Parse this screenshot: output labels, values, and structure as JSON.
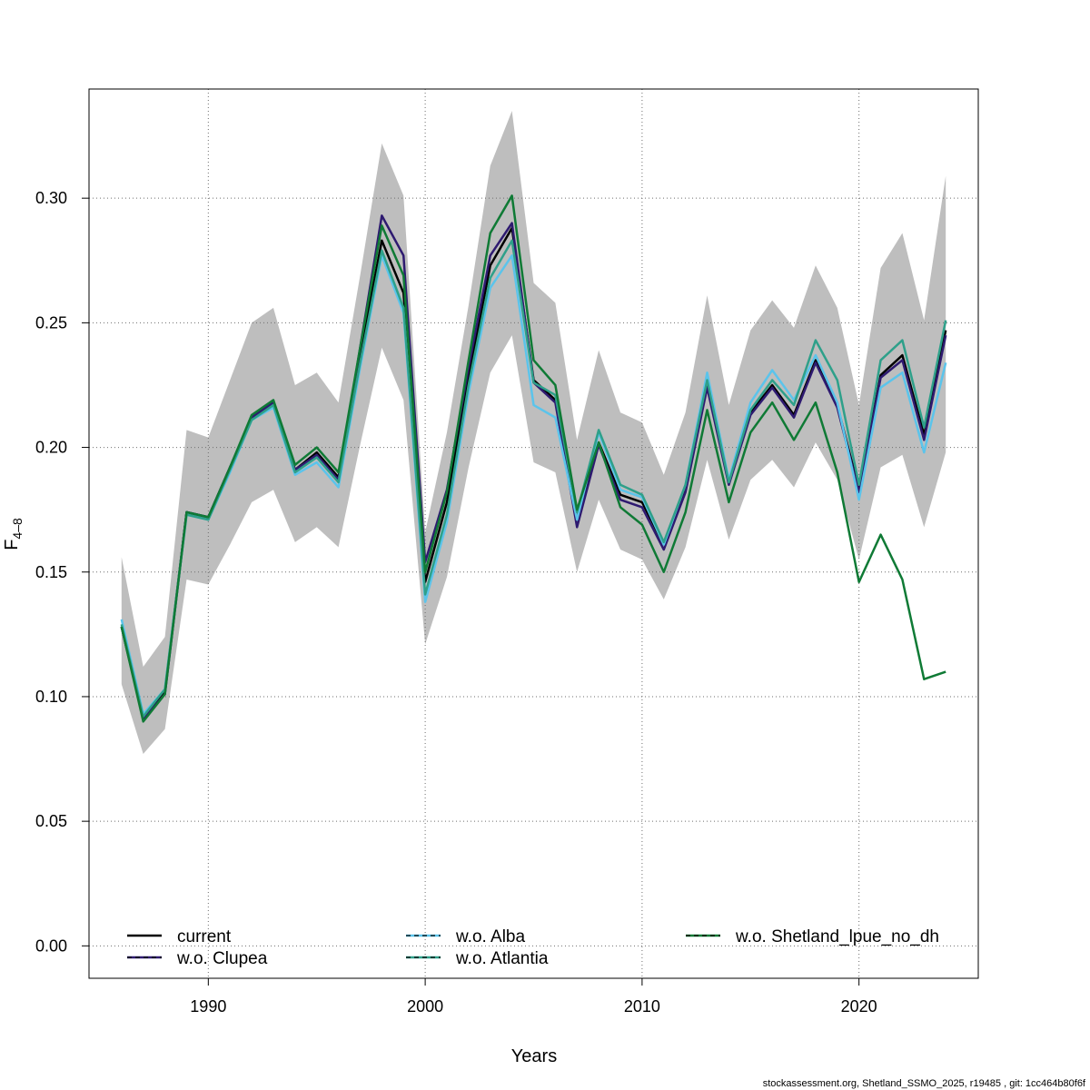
{
  "chart_data": {
    "type": "line",
    "xlabel": "Years",
    "ylabel_main": "F",
    "ylabel_sub": "4–8",
    "xlim": [
      1984.5,
      2025.5
    ],
    "ylim": [
      -0.013,
      0.3438
    ],
    "x_ticks": [
      1990,
      2000,
      2010,
      2020
    ],
    "x_tick_labels": [
      "1990",
      "2000",
      "2010",
      "2020"
    ],
    "y_ticks": [
      0.0,
      0.05,
      0.1,
      0.15,
      0.2,
      0.25,
      0.3
    ],
    "y_tick_labels": [
      "0.00",
      "0.05",
      "0.10",
      "0.15",
      "0.20",
      "0.25",
      "0.30"
    ],
    "grid": true,
    "legend_position": "bottom",
    "x": [
      1986,
      1987,
      1988,
      1989,
      1990,
      1991,
      1992,
      1993,
      1994,
      1995,
      1996,
      1997,
      1998,
      1999,
      2000,
      2001,
      2002,
      2003,
      2004,
      2005,
      2006,
      2007,
      2008,
      2009,
      2010,
      2011,
      2012,
      2013,
      2014,
      2015,
      2016,
      2017,
      2018,
      2019,
      2020,
      2021,
      2022,
      2023,
      2024
    ],
    "confidence_band": {
      "upper": [
        0.156,
        0.112,
        0.124,
        0.207,
        0.204,
        0.227,
        0.25,
        0.256,
        0.225,
        0.23,
        0.218,
        0.269,
        0.322,
        0.301,
        0.166,
        0.206,
        0.257,
        0.313,
        0.335,
        0.266,
        0.258,
        0.203,
        0.239,
        0.214,
        0.21,
        0.189,
        0.214,
        0.261,
        0.217,
        0.247,
        0.259,
        0.248,
        0.273,
        0.256,
        0.217,
        0.272,
        0.286,
        0.251,
        0.309
      ],
      "lower": [
        0.105,
        0.077,
        0.087,
        0.147,
        0.145,
        0.161,
        0.178,
        0.183,
        0.162,
        0.168,
        0.16,
        0.201,
        0.24,
        0.219,
        0.121,
        0.148,
        0.192,
        0.23,
        0.245,
        0.194,
        0.19,
        0.15,
        0.179,
        0.159,
        0.155,
        0.139,
        0.16,
        0.195,
        0.163,
        0.187,
        0.195,
        0.184,
        0.202,
        0.187,
        0.155,
        0.192,
        0.197,
        0.168,
        0.198
      ]
    },
    "series": [
      {
        "name": "current",
        "color": "#000000",
        "dash": "",
        "values": [
          0.128,
          0.091,
          0.102,
          0.174,
          0.172,
          0.192,
          0.212,
          0.218,
          0.191,
          0.198,
          0.188,
          0.237,
          0.283,
          0.262,
          0.146,
          0.178,
          0.228,
          0.273,
          0.288,
          0.227,
          0.219,
          0.171,
          0.202,
          0.181,
          0.178,
          0.161,
          0.183,
          0.226,
          0.186,
          0.214,
          0.225,
          0.213,
          0.235,
          0.217,
          0.183,
          0.229,
          0.237,
          0.205,
          0.247
        ]
      },
      {
        "name": "w.o. Clupea",
        "color": "#2E1A70",
        "dash": "5,4",
        "values": [
          0.128,
          0.091,
          0.101,
          0.174,
          0.172,
          0.192,
          0.212,
          0.218,
          0.191,
          0.197,
          0.187,
          0.24,
          0.293,
          0.277,
          0.154,
          0.183,
          0.232,
          0.277,
          0.29,
          0.226,
          0.218,
          0.168,
          0.201,
          0.179,
          0.176,
          0.159,
          0.182,
          0.224,
          0.185,
          0.213,
          0.224,
          0.212,
          0.234,
          0.216,
          0.182,
          0.228,
          0.235,
          0.203,
          0.245
        ]
      },
      {
        "name": "w.o. Alba",
        "color": "#5BC4EB",
        "dash": "5,4",
        "values": [
          0.131,
          0.093,
          0.103,
          0.173,
          0.171,
          0.19,
          0.211,
          0.216,
          0.189,
          0.194,
          0.184,
          0.232,
          0.277,
          0.254,
          0.138,
          0.17,
          0.222,
          0.264,
          0.277,
          0.217,
          0.212,
          0.171,
          0.206,
          0.183,
          0.18,
          0.161,
          0.185,
          0.23,
          0.187,
          0.218,
          0.231,
          0.219,
          0.237,
          0.218,
          0.179,
          0.224,
          0.23,
          0.198,
          0.234
        ]
      },
      {
        "name": "w.o. Atlantia",
        "color": "#2EA08A",
        "dash": "5,4",
        "values": [
          0.129,
          0.092,
          0.103,
          0.173,
          0.171,
          0.191,
          0.211,
          0.217,
          0.19,
          0.196,
          0.186,
          0.234,
          0.279,
          0.256,
          0.141,
          0.173,
          0.225,
          0.268,
          0.283,
          0.226,
          0.221,
          0.174,
          0.207,
          0.185,
          0.181,
          0.162,
          0.185,
          0.227,
          0.186,
          0.215,
          0.227,
          0.217,
          0.243,
          0.227,
          0.185,
          0.235,
          0.243,
          0.208,
          0.251
        ]
      },
      {
        "name": "w.o. Shetland_lpue_no_dh",
        "color": "#0F7A35",
        "dash": "5,4",
        "values": [
          0.128,
          0.09,
          0.101,
          0.174,
          0.172,
          0.192,
          0.213,
          0.219,
          0.193,
          0.2,
          0.19,
          0.24,
          0.289,
          0.269,
          0.15,
          0.182,
          0.235,
          0.286,
          0.301,
          0.235,
          0.225,
          0.175,
          0.202,
          0.176,
          0.169,
          0.15,
          0.174,
          0.215,
          0.178,
          0.206,
          0.218,
          0.203,
          0.218,
          0.19,
          0.146,
          0.165,
          0.147,
          0.107,
          0.11
        ]
      }
    ]
  },
  "footer": "stockassessment.org, Shetland_SSMO_2025, r19485 , git: 1cc464b80f6f"
}
